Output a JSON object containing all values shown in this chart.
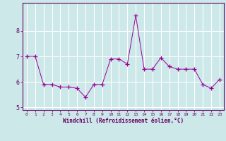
{
  "x": [
    0,
    1,
    2,
    3,
    4,
    5,
    6,
    7,
    8,
    9,
    10,
    11,
    12,
    13,
    14,
    15,
    16,
    17,
    18,
    19,
    20,
    21,
    22,
    23
  ],
  "y": [
    7.0,
    7.0,
    5.9,
    5.9,
    5.8,
    5.8,
    5.75,
    5.4,
    5.9,
    5.9,
    6.9,
    6.9,
    6.7,
    8.6,
    6.5,
    6.5,
    6.95,
    6.6,
    6.5,
    6.5,
    6.5,
    5.9,
    5.75,
    6.1
  ],
  "line_color": "#990099",
  "marker_color": "#990099",
  "bg_color": "#cce8e8",
  "grid_color": "#ffffff",
  "axis_color": "#660066",
  "xlabel": "Windchill (Refroidissement éolien,°C)",
  "xlabel_color": "#660066",
  "tick_color": "#660066",
  "ylim": [
    4.9,
    9.1
  ],
  "xlim": [
    -0.5,
    23.5
  ],
  "yticks": [
    5,
    6,
    7,
    8
  ],
  "xticks": [
    0,
    1,
    2,
    3,
    4,
    5,
    6,
    7,
    8,
    9,
    10,
    11,
    12,
    13,
    14,
    15,
    16,
    17,
    18,
    19,
    20,
    21,
    22,
    23
  ],
  "figsize": [
    3.2,
    2.0
  ],
  "dpi": 100
}
